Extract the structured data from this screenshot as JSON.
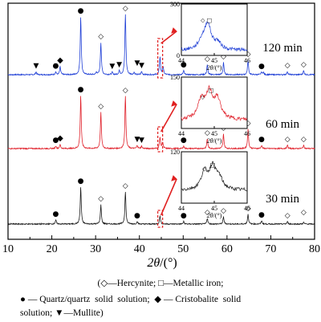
{
  "chart_data": {
    "type": "line",
    "xlabel_sym": "2θ",
    "xlabel_unit": "/(°)",
    "xlim": [
      10,
      80
    ],
    "x_ticks": [
      10,
      20,
      30,
      40,
      50,
      60,
      70,
      80
    ],
    "grid": false,
    "colors": {
      "120 min": "#1f3fd6",
      "60 min": "#e0202a",
      "30 min": "#1a1a1a",
      "highlight": "#e02020"
    },
    "series": [
      {
        "name": "120 min",
        "base": 0.0,
        "peaks": [
          [
            16.4,
            3.5
          ],
          [
            20.9,
            3.5
          ],
          [
            21.9,
            10
          ],
          [
            26.6,
            72
          ],
          [
            30.2,
            3
          ],
          [
            31.2,
            40
          ],
          [
            33.8,
            3
          ],
          [
            35.4,
            5
          ],
          [
            36.8,
            75
          ],
          [
            38.8,
            3
          ],
          [
            40.5,
            4
          ],
          [
            44.7,
            22
          ],
          [
            45.4,
            10
          ],
          [
            50.1,
            5
          ],
          [
            55.5,
            12
          ],
          [
            59.2,
            15
          ],
          [
            64.8,
            18
          ],
          [
            67.9,
            3
          ],
          [
            68.3,
            3
          ],
          [
            73.8,
            4
          ],
          [
            77.5,
            5
          ]
        ]
      },
      {
        "name": "60 min",
        "base": 0.0,
        "peaks": [
          [
            20.9,
            3
          ],
          [
            21.9,
            5
          ],
          [
            26.6,
            66
          ],
          [
            31.2,
            45
          ],
          [
            36.8,
            65
          ],
          [
            39.5,
            4
          ],
          [
            40.5,
            3
          ],
          [
            44.7,
            14
          ],
          [
            45.3,
            8
          ],
          [
            50.1,
            3
          ],
          [
            55.5,
            12
          ],
          [
            59.2,
            18
          ],
          [
            64.8,
            24
          ],
          [
            67.9,
            4
          ],
          [
            73.8,
            4
          ],
          [
            77.5,
            4
          ]
        ]
      },
      {
        "name": "30 min",
        "base": 0.0,
        "peaks": [
          [
            20.9,
            5
          ],
          [
            26.6,
            46
          ],
          [
            31.2,
            24
          ],
          [
            36.8,
            40
          ],
          [
            39.5,
            3
          ],
          [
            44.7,
            10
          ],
          [
            50.1,
            3
          ],
          [
            55.5,
            7
          ],
          [
            59.2,
            9
          ],
          [
            64.8,
            12
          ],
          [
            67.9,
            4
          ],
          [
            73.8,
            3
          ],
          [
            77.5,
            2
          ]
        ]
      }
    ],
    "markers": {
      "120 min": [
        {
          "x": 16.4,
          "sym": "▼"
        },
        {
          "x": 20.9,
          "sym": "●"
        },
        {
          "x": 21.9,
          "sym": "◆"
        },
        {
          "x": 26.6,
          "sym": "●"
        },
        {
          "x": 31.2,
          "sym": "◇"
        },
        {
          "x": 33.8,
          "sym": "▼"
        },
        {
          "x": 35.4,
          "sym": "▼"
        },
        {
          "x": 36.8,
          "sym": "◇"
        },
        {
          "x": 39.5,
          "sym": "▼"
        },
        {
          "x": 40.5,
          "sym": "▼"
        },
        {
          "x": 50.1,
          "sym": "●"
        },
        {
          "x": 55.5,
          "sym": "◇"
        },
        {
          "x": 59.2,
          "sym": "◇"
        },
        {
          "x": 64.8,
          "sym": "◇"
        },
        {
          "x": 67.9,
          "sym": "●"
        },
        {
          "x": 73.8,
          "sym": "◇"
        },
        {
          "x": 77.5,
          "sym": "◇"
        }
      ],
      "60 min": [
        {
          "x": 20.9,
          "sym": "●"
        },
        {
          "x": 21.9,
          "sym": "◆"
        },
        {
          "x": 26.6,
          "sym": "●"
        },
        {
          "x": 31.2,
          "sym": "◇"
        },
        {
          "x": 36.8,
          "sym": "◇"
        },
        {
          "x": 39.5,
          "sym": "▼"
        },
        {
          "x": 40.5,
          "sym": "▼"
        },
        {
          "x": 50.1,
          "sym": "●"
        },
        {
          "x": 55.5,
          "sym": "◇"
        },
        {
          "x": 59.2,
          "sym": "◇"
        },
        {
          "x": 64.8,
          "sym": "◇"
        },
        {
          "x": 67.9,
          "sym": "●"
        },
        {
          "x": 73.8,
          "sym": "◇"
        },
        {
          "x": 77.5,
          "sym": "◇"
        }
      ],
      "30 min": [
        {
          "x": 20.9,
          "sym": "●"
        },
        {
          "x": 26.6,
          "sym": "●"
        },
        {
          "x": 31.2,
          "sym": "◇"
        },
        {
          "x": 36.8,
          "sym": "◇"
        },
        {
          "x": 39.5,
          "sym": "●"
        },
        {
          "x": 50.1,
          "sym": "●"
        },
        {
          "x": 55.5,
          "sym": "◇"
        },
        {
          "x": 59.2,
          "sym": "◇"
        },
        {
          "x": 64.8,
          "sym": "◇"
        },
        {
          "x": 67.9,
          "sym": "●"
        },
        {
          "x": 73.8,
          "sym": "◇"
        },
        {
          "x": 77.5,
          "sym": "◇"
        }
      ]
    },
    "insets": [
      {
        "series": "120 min",
        "xlim": [
          44,
          46
        ],
        "x_ticks": [
          44,
          45,
          46
        ],
        "ylim": [
          0,
          300
        ],
        "y_ticks": [
          0,
          300
        ],
        "peaks": [
          [
            44.8,
            150
          ],
          [
            44.62,
            45
          ],
          [
            45.1,
            40
          ]
        ],
        "base": 30,
        "markers": [
          {
            "x": 44.65,
            "sym": "◇"
          },
          {
            "x": 44.85,
            "sym": "□"
          }
        ]
      },
      {
        "series": "60 min",
        "xlim": [
          44,
          46
        ],
        "x_ticks": [
          44,
          45,
          46
        ],
        "ylim": [
          0,
          150
        ],
        "y_ticks": [
          150
        ],
        "peaks": [
          [
            44.6,
            55
          ],
          [
            44.85,
            75
          ],
          [
            45.1,
            55
          ]
        ],
        "base": 25,
        "markers": [
          {
            "x": 44.65,
            "sym": "◇"
          },
          {
            "x": 44.9,
            "sym": "□"
          }
        ]
      },
      {
        "series": "30 min",
        "xlim": [
          44,
          46
        ],
        "x_ticks": [
          44,
          45,
          46
        ],
        "ylim": [
          0,
          120
        ],
        "y_ticks": [
          120
        ],
        "peaks": [
          [
            44.7,
            40
          ],
          [
            44.95,
            50
          ],
          [
            45.15,
            25
          ]
        ],
        "base": 30,
        "markers": [
          {
            "x": 44.7,
            "sym": "◇"
          },
          {
            "x": 44.95,
            "sym": "□"
          }
        ]
      }
    ]
  },
  "legend": {
    "line1_a": "(◇—Hercynite; □—Metallic iron;",
    "line2_a": "● — Quartz/quartz  solid  solution;  ◆ — Cristobalite  solid",
    "line3_a": "solution; ▼—Mullite)"
  }
}
